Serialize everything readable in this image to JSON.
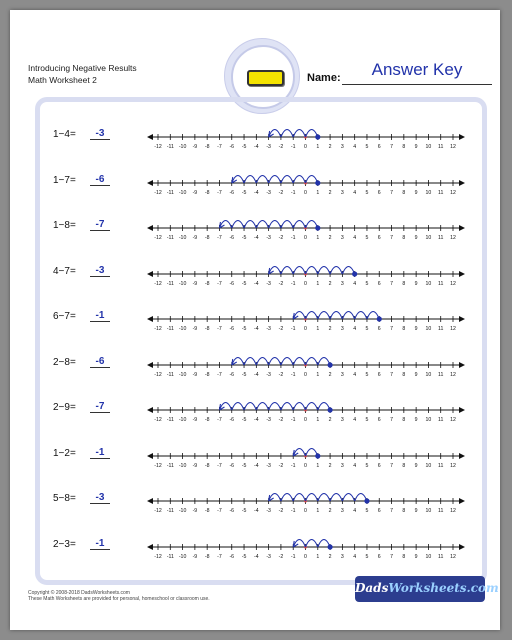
{
  "header": {
    "title_line1": "Introducing Negative Results",
    "title_line2": "Math Worksheet 2",
    "name_label": "Name:",
    "answer_key": "Answer Key"
  },
  "number_line": {
    "min": -12,
    "max": 12,
    "tick_labels": [
      "-12",
      "-11",
      "-10",
      "-9",
      "-8",
      "-7",
      "-6",
      "-5",
      "-4",
      "-3",
      "-2",
      "-1",
      "0",
      "1",
      "2",
      "3",
      "4",
      "5",
      "6",
      "7",
      "8",
      "9",
      "10",
      "11",
      "12"
    ]
  },
  "problems": [
    {
      "expression": "1−4=",
      "answer": "-3",
      "start": 1,
      "steps": 4
    },
    {
      "expression": "1−7=",
      "answer": "-6",
      "start": 1,
      "steps": 7
    },
    {
      "expression": "1−8=",
      "answer": "-7",
      "start": 1,
      "steps": 8
    },
    {
      "expression": "4−7=",
      "answer": "-3",
      "start": 4,
      "steps": 7
    },
    {
      "expression": "6−7=",
      "answer": "-1",
      "start": 6,
      "steps": 7
    },
    {
      "expression": "2−8=",
      "answer": "-6",
      "start": 2,
      "steps": 8
    },
    {
      "expression": "2−9=",
      "answer": "-7",
      "start": 2,
      "steps": 9
    },
    {
      "expression": "1−2=",
      "answer": "-1",
      "start": 1,
      "steps": 2
    },
    {
      "expression": "5−8=",
      "answer": "-3",
      "start": 5,
      "steps": 8
    },
    {
      "expression": "2−3=",
      "answer": "-1",
      "start": 2,
      "steps": 3
    }
  ],
  "footer": {
    "copyright": "Copyright © 2008-2018 DadsWorksheets.com",
    "notice": "These Math Worksheets are provided for personal, homeschool or classroom use.",
    "brand_part1": "Dads",
    "brand_part2": "Worksheets.com"
  },
  "colors": {
    "accent": "#2233aa",
    "highlight": "#f4e300",
    "frame": "#d9ddf1",
    "zero_marker": "#d24a4a"
  },
  "icons": {
    "badge": "yellow-bar-icon"
  }
}
